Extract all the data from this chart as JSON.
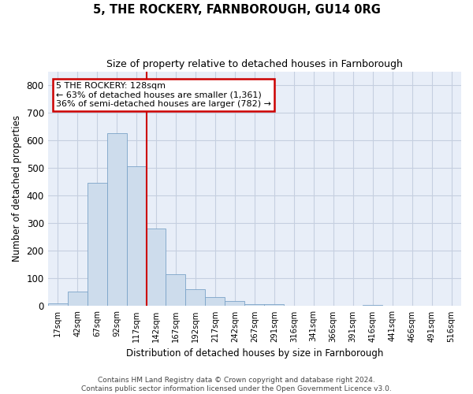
{
  "title": "5, THE ROCKERY, FARNBOROUGH, GU14 0RG",
  "subtitle": "Size of property relative to detached houses in Farnborough",
  "xlabel": "Distribution of detached houses by size in Farnborough",
  "ylabel": "Number of detached properties",
  "bar_color": "#cddcec",
  "bar_edge_color": "#7ba3c8",
  "background_color": "#e8eef8",
  "grid_color": "#d0d8e8",
  "categories": [
    "17sqm",
    "42sqm",
    "67sqm",
    "92sqm",
    "117sqm",
    "142sqm",
    "167sqm",
    "192sqm",
    "217sqm",
    "242sqm",
    "267sqm",
    "291sqm",
    "316sqm",
    "341sqm",
    "366sqm",
    "391sqm",
    "416sqm",
    "441sqm",
    "466sqm",
    "491sqm",
    "516sqm"
  ],
  "values": [
    10,
    52,
    447,
    625,
    505,
    280,
    115,
    62,
    32,
    17,
    8,
    8,
    0,
    0,
    0,
    0,
    5,
    0,
    0,
    0,
    0
  ],
  "ylim": [
    0,
    850
  ],
  "yticks": [
    0,
    100,
    200,
    300,
    400,
    500,
    600,
    700,
    800
  ],
  "annotation_line1": "5 THE ROCKERY: 128sqm",
  "annotation_line2": "← 63% of detached houses are smaller (1,361)",
  "annotation_line3": "36% of semi-detached houses are larger (782) →",
  "annotation_box_color": "#ffffff",
  "annotation_box_edge_color": "#cc0000",
  "vline_color": "#cc0000",
  "vline_index": 4.5,
  "footnote1": "Contains HM Land Registry data © Crown copyright and database right 2024.",
  "footnote2": "Contains public sector information licensed under the Open Government Licence v3.0."
}
